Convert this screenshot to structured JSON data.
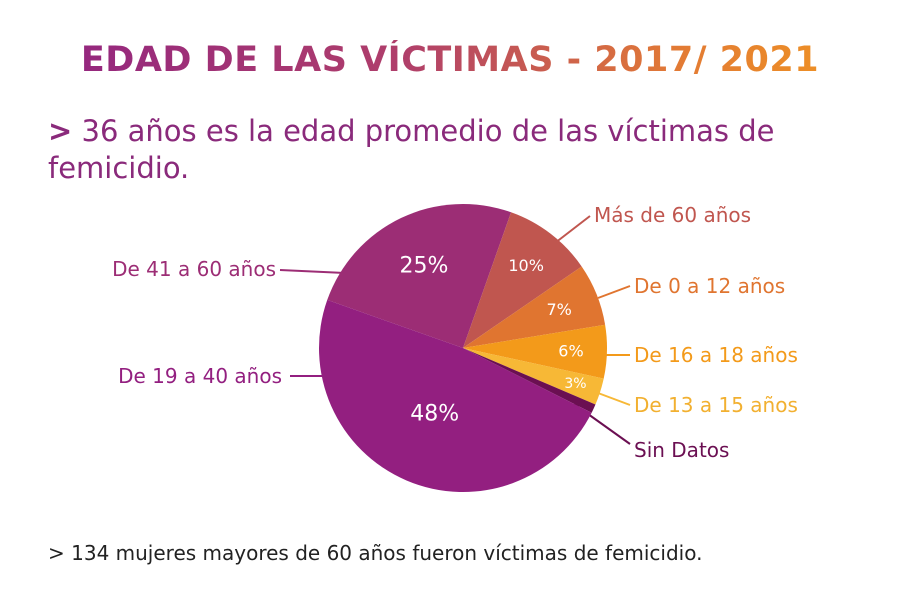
{
  "title": "EDAD DE LAS VÍCTIMAS - 2017/ 2021",
  "subtitle": {
    "marker": ">",
    "text": "36 años es la edad promedio de las víctimas de femicidio."
  },
  "footnote": "> 134 mujeres mayores de 60 años fueron víctimas de femicidio.",
  "chart_data": {
    "type": "pie",
    "title": "EDAD DE LAS VÍCTIMAS - 2017/ 2021",
    "slices": [
      {
        "label": "De 41 a 60 años",
        "value": 25,
        "display": "25%",
        "color": "#9c2d75"
      },
      {
        "label": "Más de 60 años",
        "value": 10,
        "display": "10%",
        "color": "#c0564f"
      },
      {
        "label": "De 0 a 12 años",
        "value": 7,
        "display": "7%",
        "color": "#e07530"
      },
      {
        "label": "De 16 a 18 años",
        "value": 6,
        "display": "6%",
        "color": "#f39a1a"
      },
      {
        "label": "De 13 a 15 años",
        "value": 3,
        "display": "3%",
        "color": "#f7b836"
      },
      {
        "label": "Sin Datos",
        "value": 1,
        "display": "1%",
        "color": "#6b0f52"
      },
      {
        "label": "De 19 a 40 años",
        "value": 48,
        "display": "48%",
        "color": "#931f80"
      }
    ]
  }
}
